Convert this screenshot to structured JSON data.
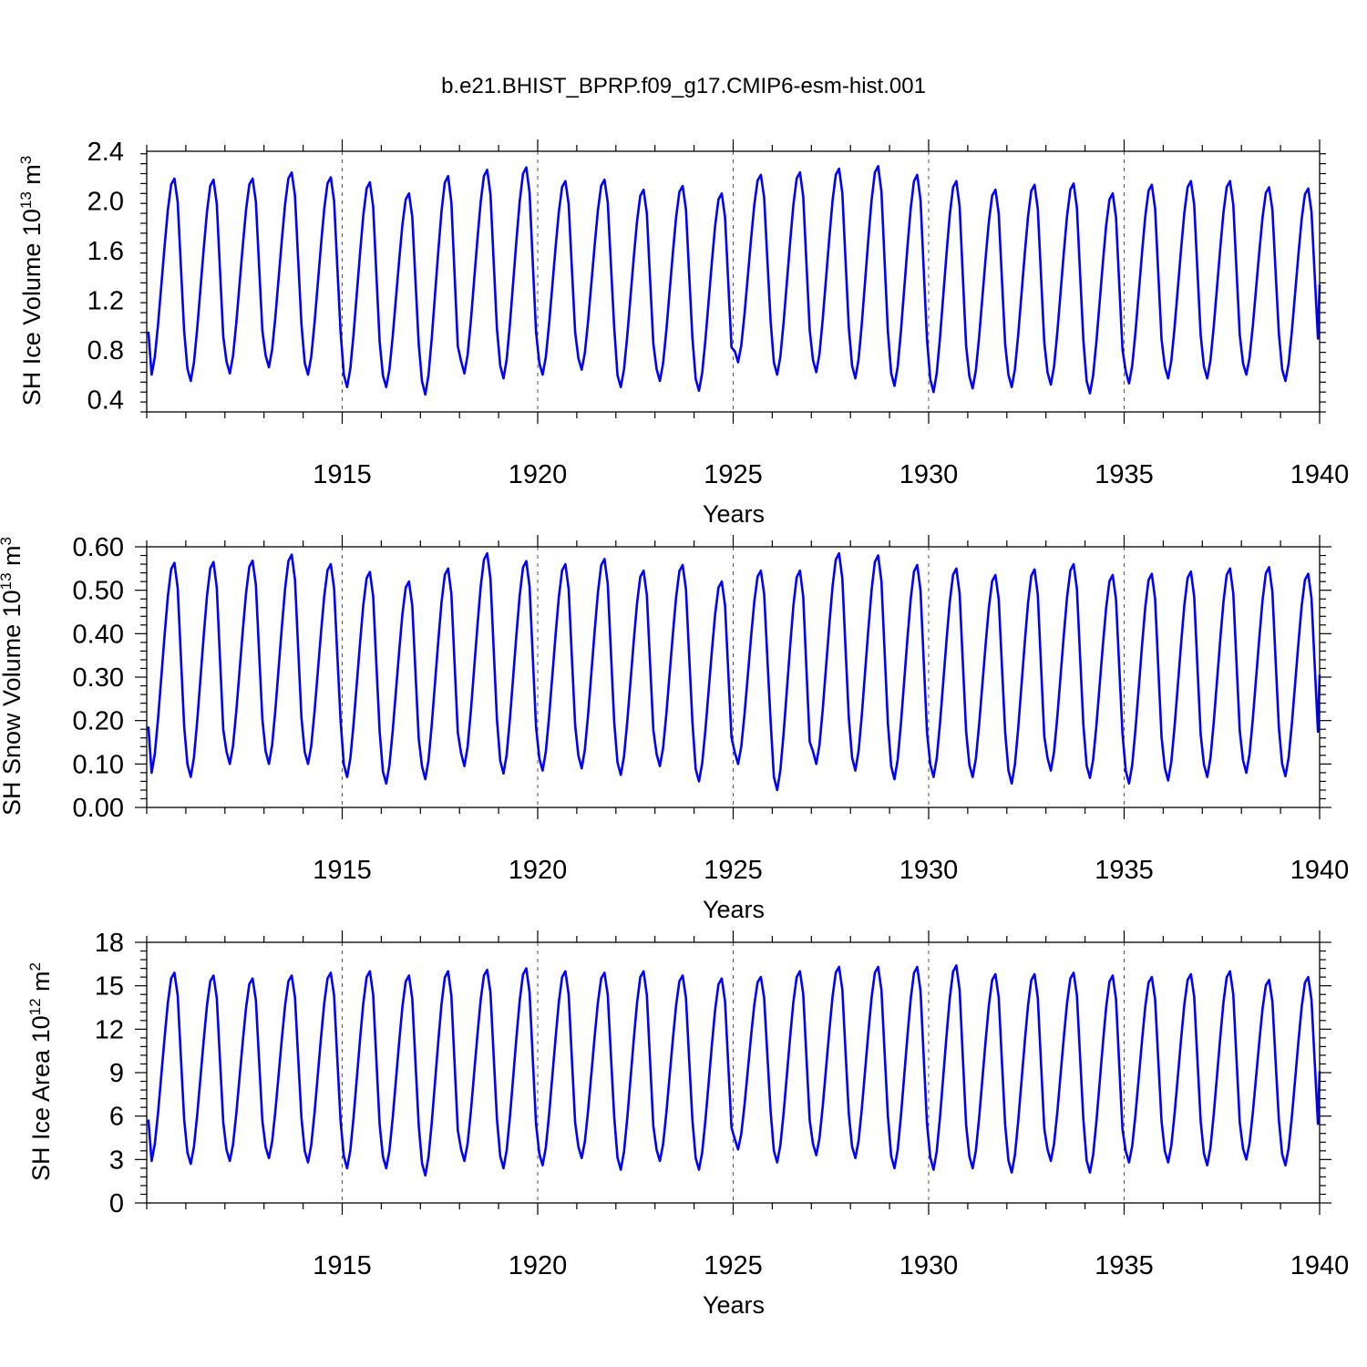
{
  "figure": {
    "title": "b.e21.BHIST_BPRP.f09_g17.CMIP6-esm-hist.001",
    "line_color": "#0000ff",
    "grid_color": "#555555"
  },
  "chart_data": [
    {
      "type": "line",
      "title": "",
      "xlabel": "Years",
      "ylabel": "SH Ice Volume",
      "ylabel_parts": [
        "SH Ice Volume 10",
        "13",
        " m",
        "3"
      ],
      "xlim": [
        1910.0,
        1940.0
      ],
      "ylim": [
        0.3,
        2.4
      ],
      "xticks": [
        1915,
        1920,
        1925,
        1930,
        1935,
        1940
      ],
      "yticks": [
        0.4,
        0.8,
        1.2,
        1.6,
        2.0,
        2.4
      ],
      "ytick_labels": [
        "0.4",
        "0.8",
        "1.2",
        "1.6",
        "2.0",
        "2.4"
      ],
      "grid": "dashed vertical lines at major x ticks",
      "series": [
        {
          "start_year": 1910,
          "annual_min": [
            0.6,
            0.55,
            0.61,
            0.66,
            0.6,
            0.5,
            0.5,
            0.44,
            0.61,
            0.57,
            0.6,
            0.64,
            0.5,
            0.55,
            0.47,
            0.7,
            0.6,
            0.62,
            0.57,
            0.51,
            0.46,
            0.49,
            0.5,
            0.52,
            0.45,
            0.53,
            0.57,
            0.57,
            0.6,
            0.55
          ],
          "annual_max": [
            2.18,
            2.17,
            2.18,
            2.23,
            2.19,
            2.15,
            2.06,
            2.2,
            2.25,
            2.27,
            2.16,
            2.17,
            2.09,
            2.12,
            2.06,
            2.21,
            2.23,
            2.26,
            2.28,
            2.21,
            2.16,
            2.09,
            2.13,
            2.14,
            2.06,
            2.13,
            2.16,
            2.16,
            2.11,
            2.1
          ]
        }
      ]
    },
    {
      "type": "line",
      "title": "",
      "xlabel": "Years",
      "ylabel": "SH Snow Volume",
      "ylabel_parts": [
        "SH Snow Volume 10",
        "13",
        " m",
        "3"
      ],
      "xlim": [
        1910.0,
        1940.0
      ],
      "ylim": [
        0.0,
        0.6
      ],
      "xticks": [
        1915,
        1920,
        1925,
        1930,
        1935,
        1940
      ],
      "yticks": [
        0.0,
        0.1,
        0.2,
        0.3,
        0.4,
        0.5,
        0.6
      ],
      "ytick_labels": [
        "0.00",
        "0.10",
        "0.20",
        "0.30",
        "0.40",
        "0.50",
        "0.60"
      ],
      "grid": "dashed vertical lines at major x ticks",
      "series": [
        {
          "start_year": 1910,
          "annual_min": [
            0.08,
            0.07,
            0.1,
            0.1,
            0.1,
            0.07,
            0.055,
            0.065,
            0.095,
            0.078,
            0.085,
            0.09,
            0.075,
            0.095,
            0.06,
            0.1,
            0.04,
            0.1,
            0.085,
            0.065,
            0.07,
            0.07,
            0.055,
            0.085,
            0.068,
            0.055,
            0.062,
            0.07,
            0.08,
            0.072
          ],
          "annual_max": [
            0.563,
            0.565,
            0.568,
            0.582,
            0.56,
            0.542,
            0.52,
            0.55,
            0.585,
            0.567,
            0.56,
            0.572,
            0.545,
            0.558,
            0.52,
            0.545,
            0.545,
            0.585,
            0.58,
            0.558,
            0.55,
            0.535,
            0.548,
            0.56,
            0.535,
            0.538,
            0.543,
            0.55,
            0.553,
            0.538
          ]
        }
      ]
    },
    {
      "type": "line",
      "title": "",
      "xlabel": "Years",
      "ylabel": "SH Ice Area",
      "ylabel_parts": [
        "SH Ice Area 10",
        "12",
        " m",
        "2"
      ],
      "xlim": [
        1910.0,
        1940.0
      ],
      "ylim": [
        0,
        18
      ],
      "xticks": [
        1915,
        1920,
        1925,
        1930,
        1935,
        1940
      ],
      "yticks": [
        0,
        3,
        6,
        9,
        12,
        15,
        18
      ],
      "ytick_labels": [
        "0",
        "3",
        "6",
        "9",
        "12",
        "15",
        "18"
      ],
      "grid": "dashed vertical lines at major x ticks",
      "series": [
        {
          "start_year": 1910,
          "annual_min": [
            2.9,
            2.7,
            2.9,
            3.1,
            2.8,
            2.4,
            2.4,
            1.9,
            2.9,
            2.4,
            2.6,
            3.1,
            2.3,
            2.9,
            2.3,
            3.7,
            2.8,
            3.3,
            3.1,
            2.4,
            2.3,
            2.4,
            2.1,
            2.9,
            2.1,
            2.8,
            2.8,
            2.6,
            3.0,
            2.6
          ],
          "annual_max": [
            15.9,
            15.7,
            15.5,
            15.7,
            15.9,
            16.0,
            15.7,
            16.0,
            16.1,
            16.2,
            16.0,
            15.9,
            16.0,
            15.7,
            15.5,
            15.6,
            16.0,
            16.3,
            16.3,
            16.3,
            16.4,
            15.8,
            15.8,
            15.9,
            15.7,
            15.6,
            15.8,
            16.0,
            15.4,
            15.6
          ]
        }
      ]
    }
  ]
}
